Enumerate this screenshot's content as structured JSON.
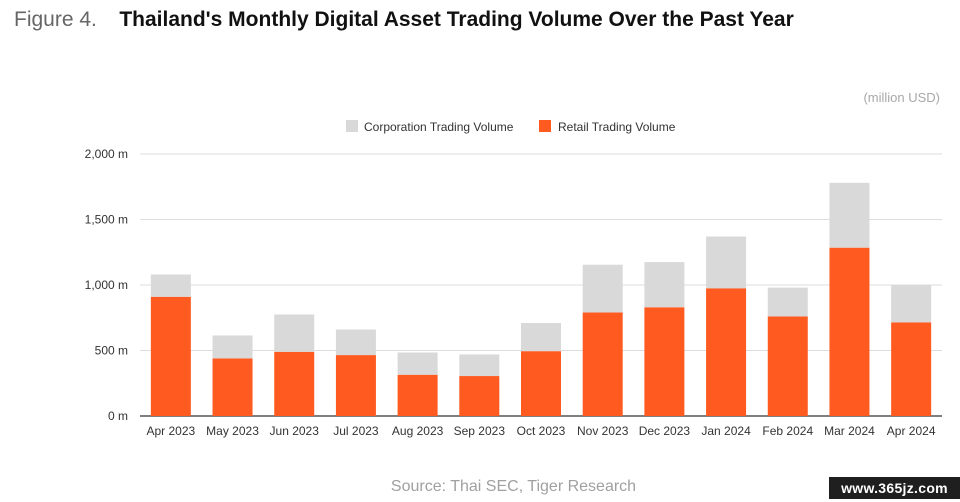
{
  "header": {
    "figure_number": "Figure 4.",
    "title": "Thailand's Monthly Digital Asset Trading Volume Over the Past Year"
  },
  "unit_label": "(million USD)",
  "source": "Source: Thai SEC, Tiger Research",
  "watermark": "www.365jz.com",
  "colors": {
    "corporation": "#d9d9d9",
    "retail": "#ff5a1f",
    "grid": "#dddddd",
    "axis": "#333333"
  },
  "chart_data": {
    "type": "bar",
    "stacked": true,
    "title": "Thailand's Monthly Digital Asset Trading Volume Over the Past Year",
    "xlabel": "",
    "ylabel": "(million USD)",
    "ylim": [
      0,
      2000
    ],
    "yticks": [
      0,
      500,
      1000,
      1500,
      2000
    ],
    "ytick_labels": [
      "0 m",
      "500 m",
      "1,000 m",
      "1,500 m",
      "2,000 m"
    ],
    "grid": true,
    "legend_position": "top-center",
    "categories": [
      "Apr 2023",
      "May 2023",
      "Jun 2023",
      "Jul 2023",
      "Aug 2023",
      "Sep 2023",
      "Oct 2023",
      "Nov 2023",
      "Dec 2023",
      "Jan 2024",
      "Feb 2024",
      "Mar 2024",
      "Apr 2024"
    ],
    "series": [
      {
        "name": "Retail Trading Volume",
        "values": [
          910,
          440,
          490,
          465,
          315,
          305,
          495,
          790,
          830,
          975,
          760,
          1285,
          715
        ]
      },
      {
        "name": "Corporation Trading Volume",
        "values": [
          170,
          175,
          285,
          195,
          170,
          165,
          215,
          365,
          345,
          395,
          220,
          495,
          285
        ]
      }
    ]
  }
}
